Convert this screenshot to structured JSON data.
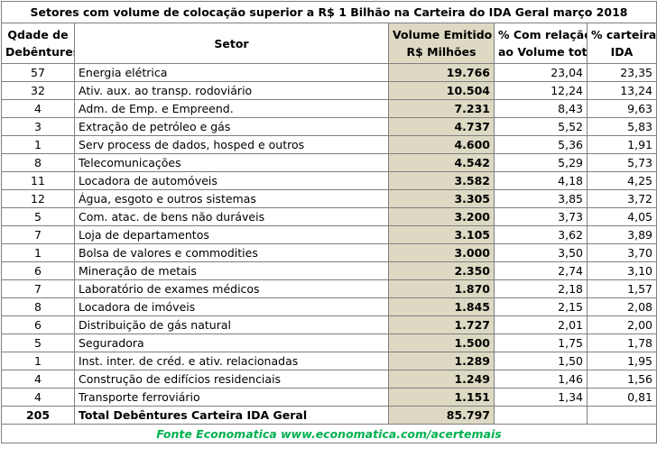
{
  "title": "Setores com volume de colocação superior a R$ 1 Bilhão na Carteira do IDA Geral março 2018",
  "headers": {
    "qty_line1": "Qdade de",
    "qty_line2": "Debêntures",
    "sector": "Setor",
    "volume_line1": "Volume Emitido",
    "volume_line2": "R$ Milhões",
    "pct_volume_line1": "% Com relação",
    "pct_volume_line2": "ao Volume total",
    "pct_ida_line1": "% carteira",
    "pct_ida_line2": "IDA"
  },
  "rows": [
    {
      "qty": "57",
      "sector": "Energia elétrica",
      "volume": "19.766",
      "pct_volume": "23,04",
      "pct_ida": "23,35"
    },
    {
      "qty": "32",
      "sector": "Ativ. aux. ao transp. rodoviário",
      "volume": "10.504",
      "pct_volume": "12,24",
      "pct_ida": "13,24"
    },
    {
      "qty": "4",
      "sector": "Adm. de Emp. e Empreend.",
      "volume": "7.231",
      "pct_volume": "8,43",
      "pct_ida": "9,63"
    },
    {
      "qty": "3",
      "sector": "Extração de petróleo e gás",
      "volume": "4.737",
      "pct_volume": "5,52",
      "pct_ida": "5,83"
    },
    {
      "qty": "1",
      "sector": "Serv process de dados, hosped e outros",
      "volume": "4.600",
      "pct_volume": "5,36",
      "pct_ida": "1,91"
    },
    {
      "qty": "8",
      "sector": "Telecomunicações",
      "volume": "4.542",
      "pct_volume": "5,29",
      "pct_ida": "5,73"
    },
    {
      "qty": "11",
      "sector": "Locadora de automóveis",
      "volume": "3.582",
      "pct_volume": "4,18",
      "pct_ida": "4,25"
    },
    {
      "qty": "12",
      "sector": "Água, esgoto e outros sistemas",
      "volume": "3.305",
      "pct_volume": "3,85",
      "pct_ida": "3,72"
    },
    {
      "qty": "5",
      "sector": "Com. atac. de bens não duráveis",
      "volume": "3.200",
      "pct_volume": "3,73",
      "pct_ida": "4,05"
    },
    {
      "qty": "7",
      "sector": "Loja de departamentos",
      "volume": "3.105",
      "pct_volume": "3,62",
      "pct_ida": "3,89"
    },
    {
      "qty": "1",
      "sector": "Bolsa de valores e commodities",
      "volume": "3.000",
      "pct_volume": "3,50",
      "pct_ida": "3,70"
    },
    {
      "qty": "6",
      "sector": "Mineração de metais",
      "volume": "2.350",
      "pct_volume": "2,74",
      "pct_ida": "3,10"
    },
    {
      "qty": "7",
      "sector": "Laboratório de exames médicos",
      "volume": "1.870",
      "pct_volume": "2,18",
      "pct_ida": "1,57"
    },
    {
      "qty": "8",
      "sector": "Locadora de imóveis",
      "volume": "1.845",
      "pct_volume": "2,15",
      "pct_ida": "2,08"
    },
    {
      "qty": "6",
      "sector": "Distribuição de gás natural",
      "volume": "1.727",
      "pct_volume": "2,01",
      "pct_ida": "2,00"
    },
    {
      "qty": "5",
      "sector": "Seguradora",
      "volume": "1.500",
      "pct_volume": "1,75",
      "pct_ida": "1,78"
    },
    {
      "qty": "1",
      "sector": "Inst. inter. de créd. e ativ. relacionadas",
      "volume": "1.289",
      "pct_volume": "1,50",
      "pct_ida": "1,95"
    },
    {
      "qty": "4",
      "sector": "Construção de edifícios residenciais",
      "volume": "1.249",
      "pct_volume": "1,46",
      "pct_ida": "1,56"
    },
    {
      "qty": "4",
      "sector": "Transporte ferroviário",
      "volume": "1.151",
      "pct_volume": "1,34",
      "pct_ida": "0,81"
    }
  ],
  "total": {
    "qty": "205",
    "sector": "Total Debêntures Carteira IDA Geral",
    "volume": "85.797"
  },
  "source": "Fonte Economatica www.economatica.com/acertemais",
  "colors": {
    "volume_fill": "#ddd9c3",
    "source_text": "#00b050",
    "border": "#7f7f7f"
  }
}
